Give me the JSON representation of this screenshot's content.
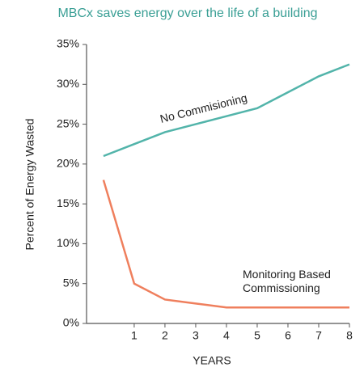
{
  "chart_data": {
    "type": "line",
    "title": "MBCx saves energy over the life of a building",
    "x_label": "YEARS",
    "y_label": "Percent of Energy Wasted",
    "x": [
      0,
      1,
      2,
      3,
      4,
      5,
      6,
      7,
      8
    ],
    "series": [
      {
        "name": "No Commisioning",
        "color": "#52b4aa",
        "values": [
          21,
          22.5,
          24,
          25,
          26,
          27,
          29,
          31,
          32.5
        ]
      },
      {
        "name": "Monitoring Based Commissioning",
        "color": "#ef7f5d",
        "values": [
          18,
          5,
          3,
          2.5,
          2,
          2,
          2,
          2,
          2
        ]
      }
    ],
    "xlim": [
      -0.55,
      8
    ],
    "xticks": [
      1,
      2,
      3,
      4,
      5,
      6,
      7,
      8
    ],
    "ylim": [
      0,
      35
    ],
    "yticks": [
      {
        "value": 0,
        "label": "0%"
      },
      {
        "value": 5,
        "label": "5%"
      },
      {
        "value": 10,
        "label": "10%"
      },
      {
        "value": 15,
        "label": "15%"
      },
      {
        "value": 20,
        "label": "20%"
      },
      {
        "value": 25,
        "label": "25%"
      },
      {
        "value": 30,
        "label": "30%"
      },
      {
        "value": 35,
        "label": "35%"
      }
    ],
    "grid": false
  }
}
